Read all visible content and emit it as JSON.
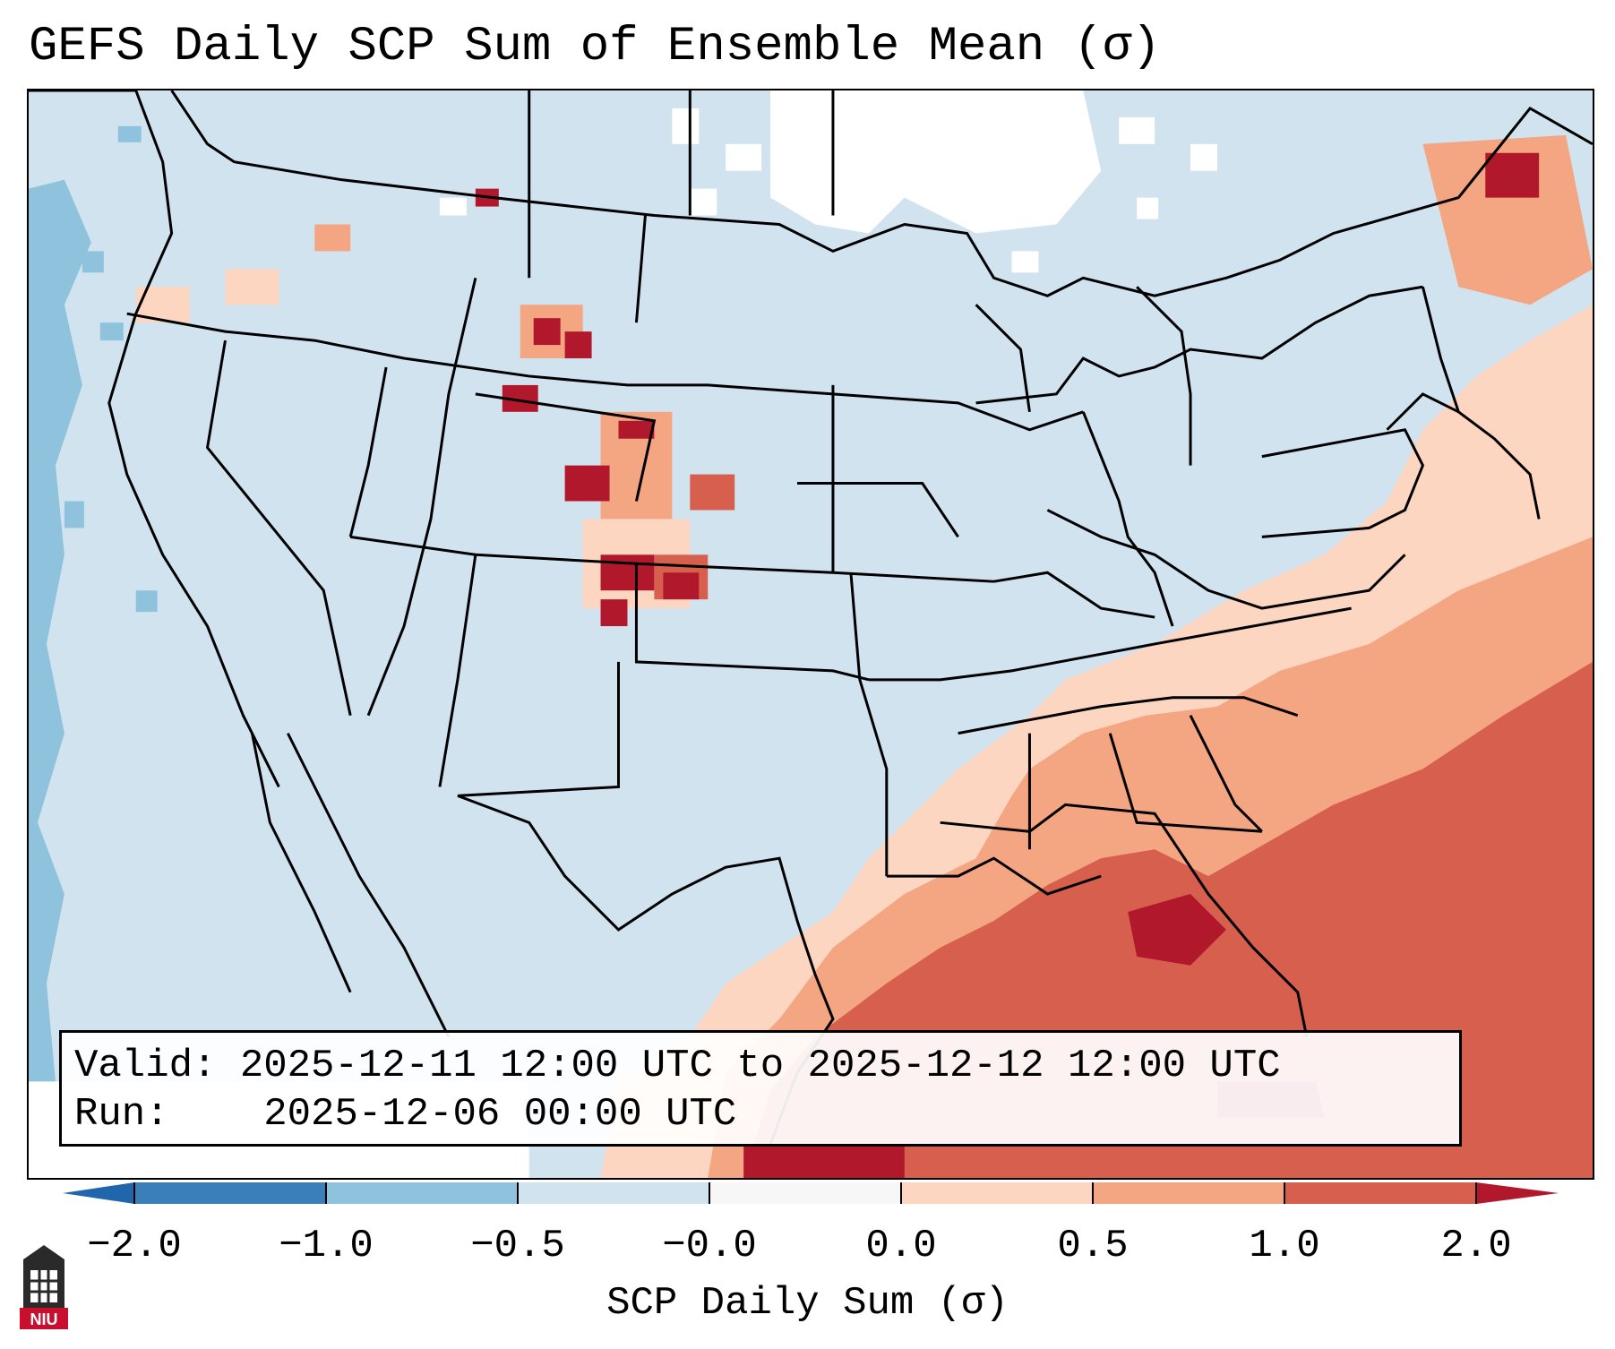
{
  "title": "GEFS Daily SCP Sum of Ensemble Mean (σ)",
  "info": {
    "valid_label": "Valid:",
    "valid_value": "2025-12-11 12:00 UTC to 2025-12-12 12:00 UTC",
    "run_label": "Run:",
    "run_value": "2025-12-06 00:00 UTC"
  },
  "colorbar": {
    "label": "SCP Daily Sum (σ)",
    "ticks": [
      "−2.0",
      "−1.0",
      "−0.5",
      "−0.0",
      "0.0",
      "0.5",
      "1.0",
      "2.0"
    ],
    "colors": [
      "#3a7fb8",
      "#8fc2dc",
      "#d0e3ef",
      "#f5f5f5",
      "#fdd6c2",
      "#f4a582",
      "#d6604d",
      "#b2182b"
    ]
  },
  "map": {
    "region": "Contiguous United States",
    "base_color": "#d0e3ef",
    "ocean_negative_color": "#8fc2dc",
    "neutral_color": "#ffffff"
  },
  "logo": {
    "text": "NIU"
  }
}
